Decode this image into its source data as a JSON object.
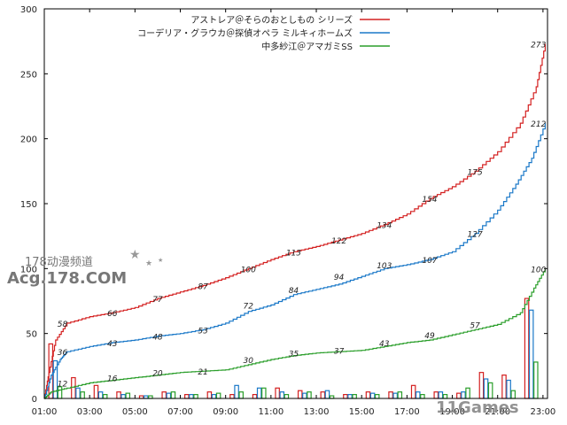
{
  "chart_data": {
    "type": "line",
    "title": "",
    "xlabel": "",
    "ylabel": "",
    "ylim": [
      0,
      300
    ],
    "y_ticks": [
      "0",
      "50",
      "100",
      "150",
      "200",
      "250",
      "300"
    ],
    "x_ticks": [
      "01:00",
      "03:00",
      "05:00",
      "07:00",
      "09:00",
      "11:00",
      "13:00",
      "15:00",
      "17:00",
      "19:00",
      "21:00",
      "23:00"
    ],
    "xlim_hours": [
      1,
      23.2
    ],
    "grid": false,
    "legend_position": "top-right",
    "series": [
      {
        "name": "アストレア＠そらのおとしもの シリーズ",
        "color": "#d42020",
        "cumulative": [
          [
            1.0,
            0
          ],
          [
            1.2,
            20
          ],
          [
            1.5,
            45
          ],
          [
            2.0,
            58
          ],
          [
            3.0,
            63
          ],
          [
            4.0,
            66
          ],
          [
            5.0,
            70
          ],
          [
            6.0,
            77
          ],
          [
            7.0,
            82
          ],
          [
            8.0,
            87
          ],
          [
            9.0,
            93
          ],
          [
            10.0,
            100
          ],
          [
            11.0,
            107
          ],
          [
            12.0,
            113
          ],
          [
            13.0,
            117
          ],
          [
            14.0,
            122
          ],
          [
            15.0,
            127
          ],
          [
            16.0,
            134
          ],
          [
            17.0,
            142
          ],
          [
            18.0,
            154
          ],
          [
            19.0,
            163
          ],
          [
            20.0,
            175
          ],
          [
            21.0,
            190
          ],
          [
            22.0,
            212
          ],
          [
            22.7,
            240
          ],
          [
            23.1,
            273
          ]
        ],
        "labels": [
          {
            "x": 1.8,
            "value": "58"
          },
          {
            "x": 4.0,
            "value": "66"
          },
          {
            "x": 6.0,
            "value": "77"
          },
          {
            "x": 8.0,
            "value": "87"
          },
          {
            "x": 10.0,
            "value": "100"
          },
          {
            "x": 12.0,
            "value": "113"
          },
          {
            "x": 14.0,
            "value": "122"
          },
          {
            "x": 16.0,
            "value": "134"
          },
          {
            "x": 18.0,
            "value": "154"
          },
          {
            "x": 20.0,
            "value": "175"
          },
          {
            "x": 22.8,
            "value": "273"
          }
        ],
        "hourly_bars": [
          [
            1.2,
            42
          ],
          [
            2.2,
            16
          ],
          [
            3.2,
            10
          ],
          [
            4.2,
            5
          ],
          [
            5.2,
            2
          ],
          [
            6.2,
            5
          ],
          [
            7.2,
            3
          ],
          [
            8.2,
            5
          ],
          [
            9.2,
            3
          ],
          [
            10.2,
            3
          ],
          [
            11.2,
            8
          ],
          [
            12.2,
            6
          ],
          [
            13.2,
            5
          ],
          [
            14.2,
            3
          ],
          [
            15.2,
            5
          ],
          [
            16.2,
            5
          ],
          [
            17.2,
            10
          ],
          [
            18.2,
            5
          ],
          [
            19.2,
            4
          ],
          [
            20.2,
            20
          ],
          [
            21.2,
            18
          ],
          [
            22.2,
            77
          ]
        ]
      },
      {
        "name": "コーデリア・グラウカ＠探偵オペラ ミルキィホームズ",
        "color": "#1a78c8",
        "cumulative": [
          [
            1.0,
            0
          ],
          [
            1.3,
            18
          ],
          [
            1.7,
            30
          ],
          [
            2.0,
            36
          ],
          [
            3.0,
            40
          ],
          [
            4.0,
            43
          ],
          [
            5.0,
            45
          ],
          [
            6.0,
            48
          ],
          [
            7.0,
            50
          ],
          [
            8.0,
            53
          ],
          [
            9.0,
            58
          ],
          [
            10.0,
            67
          ],
          [
            11.0,
            72
          ],
          [
            12.0,
            80
          ],
          [
            13.0,
            84
          ],
          [
            14.0,
            88
          ],
          [
            15.0,
            94
          ],
          [
            16.0,
            100
          ],
          [
            17.0,
            103
          ],
          [
            18.0,
            107
          ],
          [
            19.0,
            113
          ],
          [
            20.0,
            127
          ],
          [
            21.0,
            145
          ],
          [
            21.8,
            165
          ],
          [
            22.5,
            185
          ],
          [
            23.1,
            212
          ]
        ],
        "labels": [
          {
            "x": 1.8,
            "value": "36"
          },
          {
            "x": 4.0,
            "value": "43"
          },
          {
            "x": 6.0,
            "value": "48"
          },
          {
            "x": 8.0,
            "value": "53"
          },
          {
            "x": 10.0,
            "value": "72"
          },
          {
            "x": 12.0,
            "value": "84"
          },
          {
            "x": 14.0,
            "value": "94"
          },
          {
            "x": 16.0,
            "value": "103"
          },
          {
            "x": 18.0,
            "value": "107"
          },
          {
            "x": 20.0,
            "value": "127"
          },
          {
            "x": 22.8,
            "value": "212"
          }
        ],
        "hourly_bars": [
          [
            1.4,
            29
          ],
          [
            2.4,
            8
          ],
          [
            3.4,
            5
          ],
          [
            4.4,
            3
          ],
          [
            5.4,
            2
          ],
          [
            6.4,
            4
          ],
          [
            7.4,
            3
          ],
          [
            8.4,
            3
          ],
          [
            9.4,
            10
          ],
          [
            10.4,
            8
          ],
          [
            11.4,
            5
          ],
          [
            12.4,
            4
          ],
          [
            13.4,
            6
          ],
          [
            14.4,
            3
          ],
          [
            15.4,
            4
          ],
          [
            16.4,
            4
          ],
          [
            17.4,
            5
          ],
          [
            18.4,
            5
          ],
          [
            19.4,
            5
          ],
          [
            20.4,
            15
          ],
          [
            21.4,
            14
          ],
          [
            22.4,
            68
          ]
        ]
      },
      {
        "name": "中多紗江＠アマガミSS",
        "color": "#2a9e2a",
        "cumulative": [
          [
            1.0,
            0
          ],
          [
            1.3,
            5
          ],
          [
            2.0,
            8
          ],
          [
            3.0,
            12
          ],
          [
            4.0,
            14
          ],
          [
            5.0,
            16
          ],
          [
            6.0,
            18
          ],
          [
            7.0,
            20
          ],
          [
            8.0,
            21
          ],
          [
            9.0,
            22
          ],
          [
            10.0,
            26
          ],
          [
            11.0,
            30
          ],
          [
            12.0,
            33
          ],
          [
            13.0,
            35
          ],
          [
            14.0,
            36
          ],
          [
            15.0,
            37
          ],
          [
            16.0,
            40
          ],
          [
            17.0,
            43
          ],
          [
            18.0,
            45
          ],
          [
            19.0,
            49
          ],
          [
            20.0,
            53
          ],
          [
            21.0,
            57
          ],
          [
            22.0,
            66
          ],
          [
            22.6,
            85
          ],
          [
            23.1,
            100
          ]
        ],
        "labels": [
          {
            "x": 1.8,
            "value": "12"
          },
          {
            "x": 4.0,
            "value": "16"
          },
          {
            "x": 6.0,
            "value": "20"
          },
          {
            "x": 8.0,
            "value": "21"
          },
          {
            "x": 10.0,
            "value": "30"
          },
          {
            "x": 12.0,
            "value": "35"
          },
          {
            "x": 14.0,
            "value": "37"
          },
          {
            "x": 16.0,
            "value": "43"
          },
          {
            "x": 18.0,
            "value": "49"
          },
          {
            "x": 20.0,
            "value": "57"
          },
          {
            "x": 22.8,
            "value": "100"
          }
        ],
        "hourly_bars": [
          [
            1.6,
            9
          ],
          [
            2.6,
            5
          ],
          [
            3.6,
            3
          ],
          [
            4.6,
            4
          ],
          [
            5.6,
            2
          ],
          [
            6.6,
            5
          ],
          [
            7.6,
            3
          ],
          [
            8.6,
            4
          ],
          [
            9.6,
            5
          ],
          [
            10.6,
            8
          ],
          [
            11.6,
            3
          ],
          [
            12.6,
            5
          ],
          [
            13.6,
            2
          ],
          [
            14.6,
            3
          ],
          [
            15.6,
            3
          ],
          [
            16.6,
            5
          ],
          [
            17.6,
            3
          ],
          [
            18.6,
            3
          ],
          [
            19.6,
            8
          ],
          [
            20.6,
            12
          ],
          [
            21.6,
            6
          ],
          [
            22.6,
            28
          ]
        ]
      }
    ]
  },
  "watermark": {
    "line1": "178动漫频道",
    "line2": "Acg.178.COM",
    "corner": "11Games"
  }
}
